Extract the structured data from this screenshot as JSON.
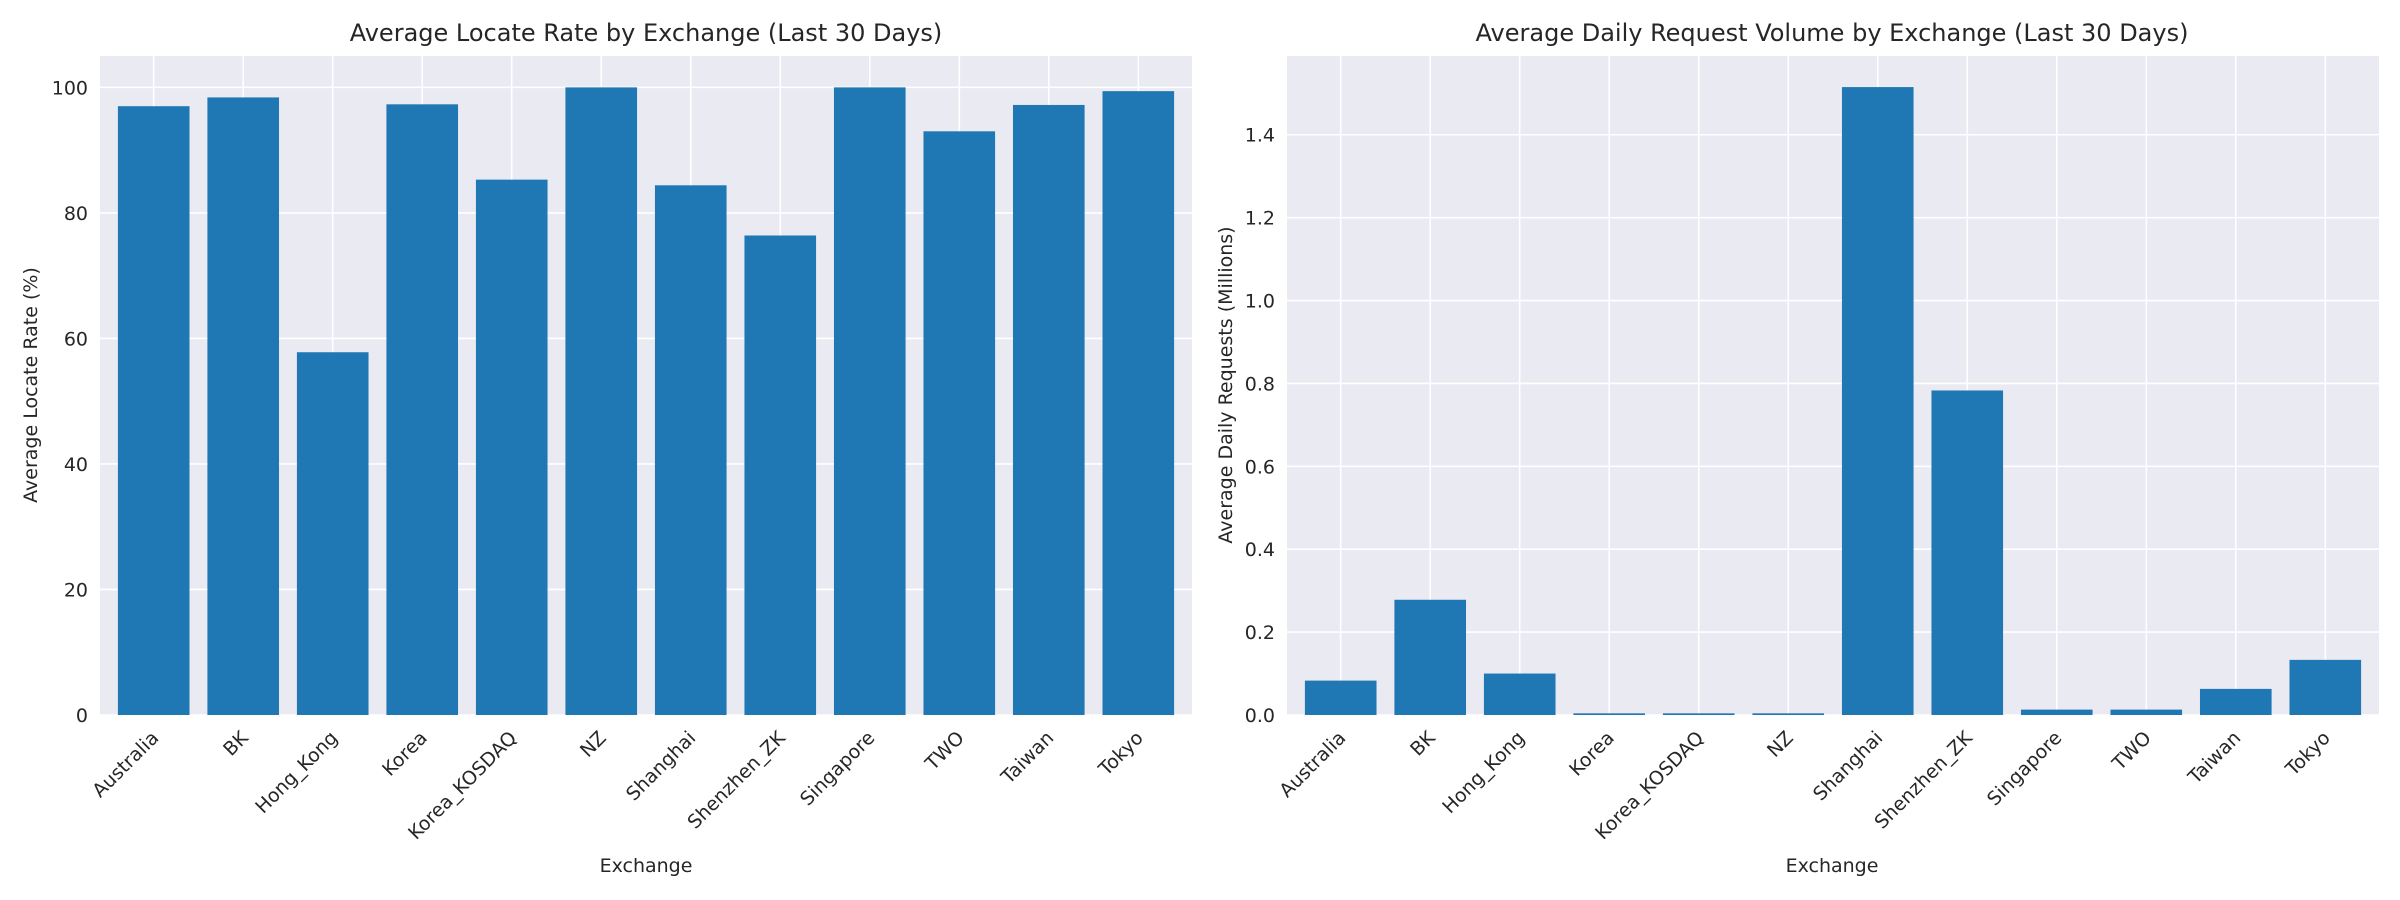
{
  "chart_data": [
    {
      "type": "bar",
      "title": "Average Locate Rate by Exchange (Last 30 Days)",
      "xlabel": "Exchange",
      "ylabel": "Average Locate Rate (%)",
      "categories": [
        "Australia",
        "BK",
        "Hong_Kong",
        "Korea",
        "Korea_KOSDAQ",
        "NZ",
        "Shanghai",
        "Shenzhen_ZK",
        "Singapore",
        "TWO",
        "Taiwan",
        "Tokyo"
      ],
      "values": [
        97.0,
        98.4,
        57.8,
        97.3,
        85.3,
        100.0,
        84.4,
        76.4,
        100.0,
        93.0,
        97.2,
        99.4
      ],
      "ylim": [
        0,
        105
      ],
      "yticks": [
        0,
        20,
        40,
        60,
        80,
        100
      ],
      "ytick_labels": [
        "0",
        "20",
        "40",
        "60",
        "80",
        "100"
      ],
      "grid": true,
      "color": "#1f77b4"
    },
    {
      "type": "bar",
      "title": "Average Daily Request Volume by Exchange (Last 30 Days)",
      "xlabel": "Exchange",
      "ylabel": "Average Daily Requests (Millions)",
      "categories": [
        "Australia",
        "BK",
        "Hong_Kong",
        "Korea",
        "Korea_KOSDAQ",
        "NZ",
        "Shanghai",
        "Shenzhen_ZK",
        "Singapore",
        "TWO",
        "Taiwan",
        "Tokyo"
      ],
      "values": [
        0.083,
        0.278,
        0.1,
        0.004,
        0.004,
        0.004,
        1.515,
        0.783,
        0.013,
        0.013,
        0.063,
        0.133
      ],
      "ylim": [
        0,
        1.59
      ],
      "yticks": [
        0,
        0.2,
        0.4,
        0.6,
        0.8,
        1.0,
        1.2,
        1.4
      ],
      "ytick_labels": [
        "0.0",
        "0.2",
        "0.4",
        "0.6",
        "0.8",
        "1.0",
        "1.2",
        "1.4"
      ],
      "grid": true,
      "color": "#1f77b4"
    }
  ]
}
